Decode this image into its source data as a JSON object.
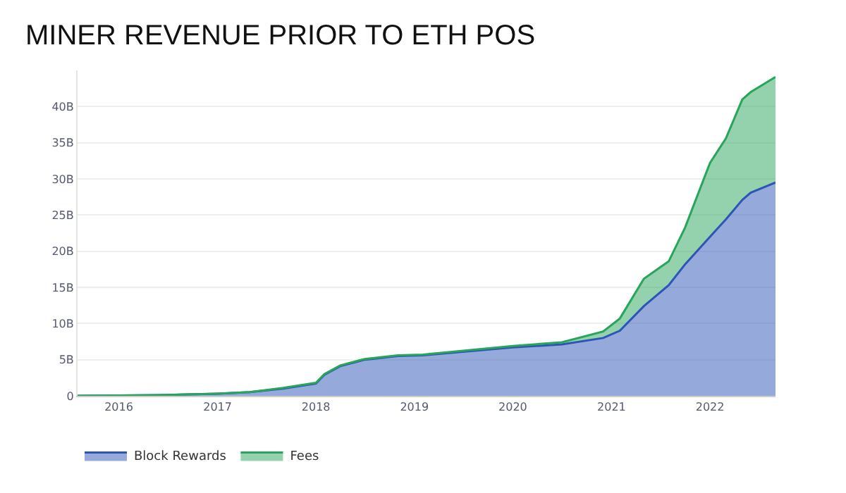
{
  "chart_data": {
    "type": "area",
    "stacked": true,
    "title": "MINER REVENUE PRIOR TO ETH POS",
    "x": [
      "2015-08",
      "2016-06",
      "2017-01",
      "2017-05",
      "2017-09",
      "2018-01",
      "2018-02",
      "2018-04",
      "2018-07",
      "2018-11",
      "2019-02",
      "2020-01",
      "2020-07",
      "2020-12",
      "2021-02",
      "2021-05",
      "2021-08",
      "2021-10",
      "2022-01",
      "2022-03",
      "2022-05",
      "2022-06",
      "2022-09"
    ],
    "series": [
      {
        "name": "Block Rewards",
        "color": "#2c55b5",
        "values": [
          0,
          0.1,
          0.3,
          0.5,
          1.0,
          1.7,
          2.9,
          4.1,
          5.0,
          5.5,
          5.6,
          6.7,
          7.1,
          8.0,
          9.0,
          12.4,
          15.3,
          18.2,
          22.0,
          24.4,
          27.1,
          28.1,
          29.5
        ]
      },
      {
        "name": "Fees",
        "color": "#27a55a",
        "values": [
          0,
          0,
          0,
          0,
          0.1,
          0.1,
          0.1,
          0.1,
          0.1,
          0.1,
          0.1,
          0.2,
          0.3,
          0.9,
          1.7,
          3.8,
          3.3,
          5.1,
          10.2,
          11.2,
          13.9,
          13.9,
          14.6
        ]
      }
    ],
    "xlim": [
      "2015-08",
      "2022-09"
    ],
    "xticks": [
      {
        "value": "2016",
        "label": "2016"
      },
      {
        "value": "2017",
        "label": "2017"
      },
      {
        "value": "2018",
        "label": "2018"
      },
      {
        "value": "2019",
        "label": "2019"
      },
      {
        "value": "2020",
        "label": "2020"
      },
      {
        "value": "2021",
        "label": "2021"
      },
      {
        "value": "2022",
        "label": "2022"
      }
    ],
    "ylim": [
      0,
      45
    ],
    "yticks": [
      0,
      {
        "value": 5,
        "label": "5B"
      },
      {
        "value": 10,
        "label": "10B"
      },
      {
        "value": 15,
        "label": "15B"
      },
      {
        "value": 20,
        "label": "20B"
      },
      {
        "value": 25,
        "label": "25B"
      },
      {
        "value": 30,
        "label": "30B"
      },
      {
        "value": 35,
        "label": "35B"
      },
      {
        "value": 40,
        "label": "40B"
      }
    ],
    "grid": "y",
    "legend": "bottom left",
    "marker": "none"
  }
}
